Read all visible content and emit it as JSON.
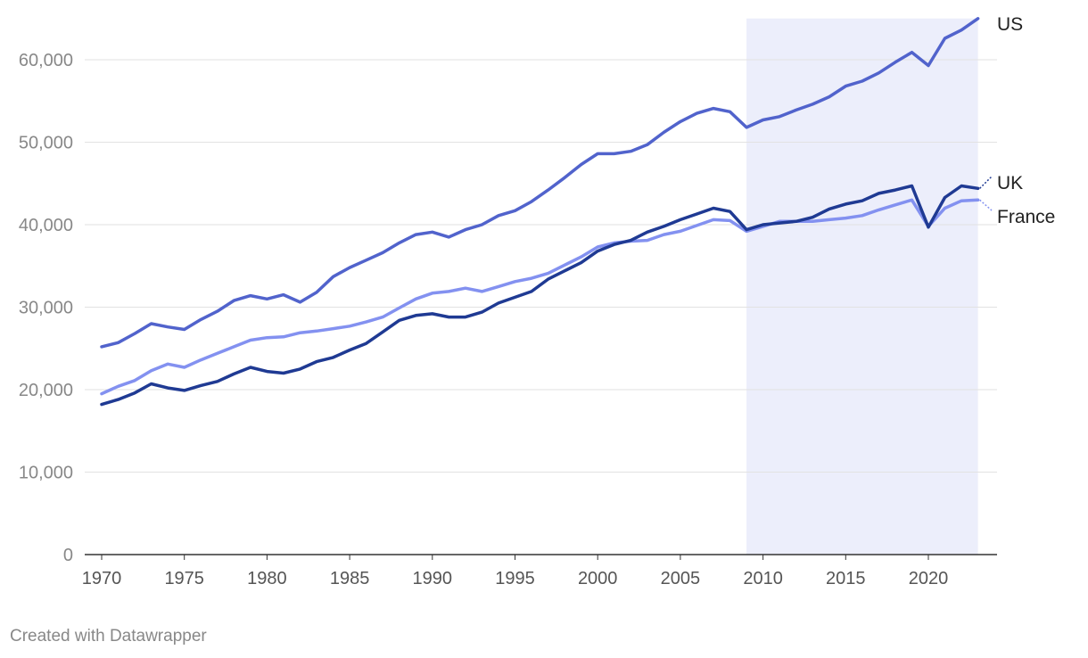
{
  "chart_data": {
    "type": "line",
    "x": [
      1970,
      1971,
      1972,
      1973,
      1974,
      1975,
      1976,
      1977,
      1978,
      1979,
      1980,
      1981,
      1982,
      1983,
      1984,
      1985,
      1986,
      1987,
      1988,
      1989,
      1990,
      1991,
      1992,
      1993,
      1994,
      1995,
      1996,
      1997,
      1998,
      1999,
      2000,
      2001,
      2002,
      2003,
      2004,
      2005,
      2006,
      2007,
      2008,
      2009,
      2010,
      2011,
      2012,
      2013,
      2014,
      2015,
      2016,
      2017,
      2018,
      2019,
      2020,
      2021,
      2022,
      2023
    ],
    "series": [
      {
        "name": "US",
        "color": "#5163cc",
        "values": [
          25200,
          25700,
          26800,
          28000,
          27600,
          27300,
          28500,
          29500,
          30800,
          31400,
          31000,
          31500,
          30600,
          31800,
          33700,
          34800,
          35700,
          36600,
          37800,
          38800,
          39100,
          38500,
          39400,
          40000,
          41100,
          41700,
          42800,
          44200,
          45700,
          47300,
          48600,
          48600,
          48900,
          49700,
          51200,
          52500,
          53500,
          54100,
          53700,
          51800,
          52700,
          53100,
          53900,
          54600,
          55500,
          56800,
          57400,
          58400,
          59700,
          60900,
          59300,
          62600,
          63600,
          65000
        ]
      },
      {
        "name": "UK",
        "color": "#1f3a93",
        "values": [
          18200,
          18800,
          19600,
          20700,
          20200,
          19900,
          20500,
          21000,
          21900,
          22700,
          22200,
          22000,
          22500,
          23400,
          23900,
          24800,
          25600,
          27000,
          28400,
          29000,
          29200,
          28800,
          28800,
          29400,
          30500,
          31200,
          31900,
          33400,
          34400,
          35400,
          36800,
          37600,
          38100,
          39100,
          39800,
          40600,
          41300,
          42000,
          41600,
          39400,
          40000,
          40200,
          40400,
          40900,
          41900,
          42500,
          42900,
          43800,
          44200,
          44700,
          39700,
          43300,
          44700,
          44400
        ]
      },
      {
        "name": "France",
        "color": "#8391f0",
        "values": [
          19500,
          20400,
          21100,
          22300,
          23100,
          22700,
          23600,
          24400,
          25200,
          26000,
          26300,
          26400,
          26900,
          27100,
          27400,
          27700,
          28200,
          28800,
          29900,
          31000,
          31700,
          31900,
          32300,
          31900,
          32500,
          33100,
          33500,
          34100,
          35100,
          36100,
          37300,
          37800,
          38000,
          38100,
          38800,
          39200,
          39900,
          40600,
          40500,
          39200,
          39800,
          40400,
          40400,
          40400,
          40600,
          40800,
          41100,
          41800,
          42400,
          43000,
          39800,
          42000,
          42900,
          43000
        ]
      }
    ],
    "y_ticks": [
      0,
      10000,
      20000,
      30000,
      40000,
      50000,
      60000
    ],
    "y_tick_labels": [
      "0",
      "10,000",
      "20,000",
      "30,000",
      "40,000",
      "50,000",
      "60,000"
    ],
    "x_ticks": [
      1970,
      1975,
      1980,
      1985,
      1990,
      1995,
      2000,
      2005,
      2010,
      2015,
      2020
    ],
    "x_tick_labels": [
      "1970",
      "1975",
      "1980",
      "1985",
      "1990",
      "1995",
      "2000",
      "2005",
      "2010",
      "2015",
      "2020"
    ],
    "xlim": [
      1970,
      2023
    ],
    "ylim": [
      0,
      65000
    ],
    "shaded_range": [
      2009,
      2023
    ],
    "shade_color": "#eceefb",
    "grid": true,
    "legend": "direct labels at line ends"
  },
  "footer": {
    "credit": "Created with Datawrapper"
  }
}
